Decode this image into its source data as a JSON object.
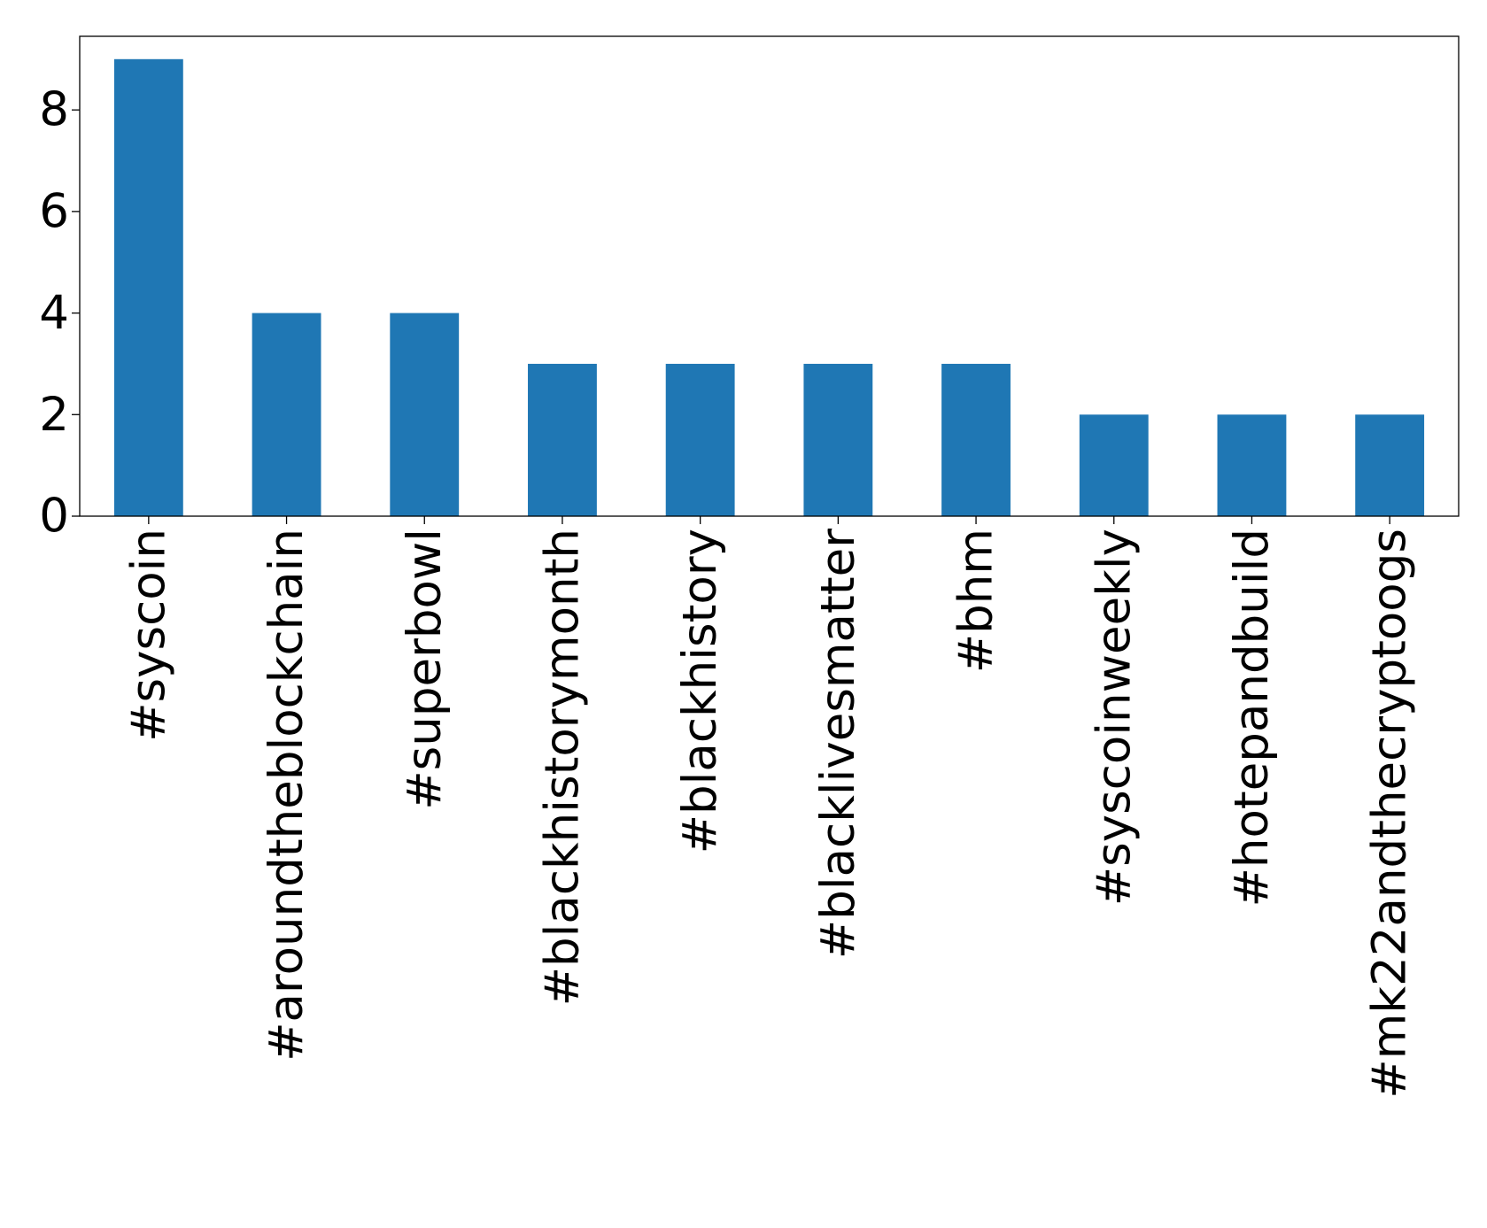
{
  "chart_data": {
    "type": "bar",
    "title": "",
    "xlabel": "",
    "ylabel": "",
    "categories": [
      "#syscoin",
      "#aroundtheblockchain",
      "#superbowl",
      "#blackhistorymonth",
      "#blackhistory",
      "#blacklivesmatter",
      "#bhm",
      "#syscoinweekly",
      "#hotepandbuild",
      "#mk22andthecryptoogs"
    ],
    "values": [
      9,
      4,
      4,
      3,
      3,
      3,
      3,
      2,
      2,
      2
    ],
    "ylim": [
      0,
      9.45
    ],
    "yticks": [
      0,
      2,
      4,
      6,
      8
    ],
    "grid": false,
    "legend": "none",
    "colors": {
      "bar": "#1f77b4",
      "axis": "#000000"
    }
  }
}
